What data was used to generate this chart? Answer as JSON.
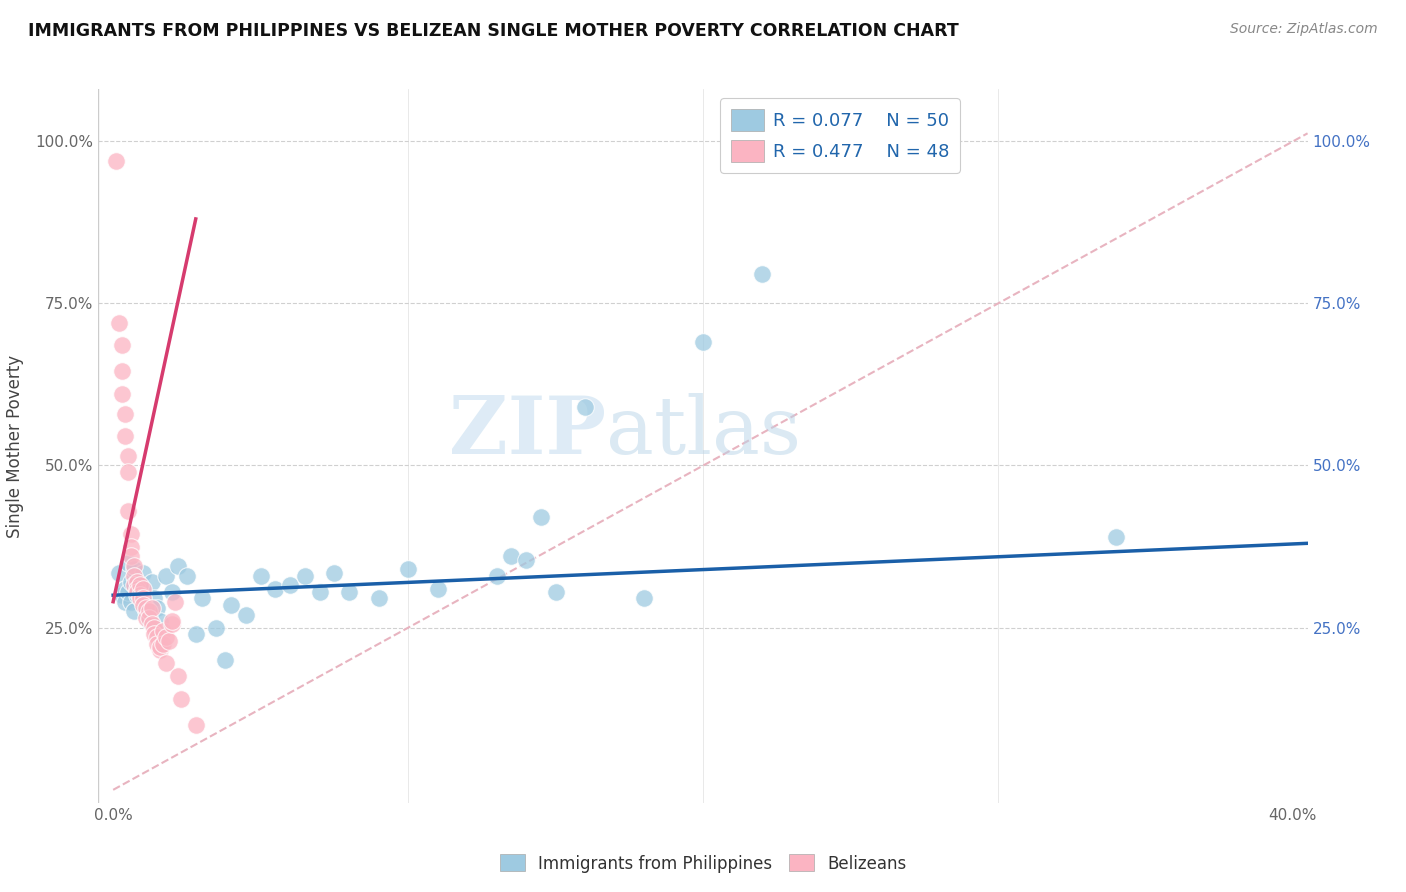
{
  "title": "IMMIGRANTS FROM PHILIPPINES VS BELIZEAN SINGLE MOTHER POVERTY CORRELATION CHART",
  "source": "Source: ZipAtlas.com",
  "ylabel": "Single Mother Poverty",
  "xlabel_legend_blue": "Immigrants from Philippines",
  "xlabel_legend_pink": "Belizeans",
  "legend_blue_r": "R = 0.077",
  "legend_blue_n": "N = 50",
  "legend_pink_r": "R = 0.477",
  "legend_pink_n": "N = 48",
  "xlim": [
    -0.005,
    0.405
  ],
  "ylim": [
    -0.02,
    1.08
  ],
  "x_ticks": [
    0.0,
    0.1,
    0.2,
    0.3,
    0.4
  ],
  "x_tick_labels": [
    "0.0%",
    "",
    "",
    "",
    "40.0%"
  ],
  "y_ticks": [
    0.25,
    0.5,
    0.75,
    1.0
  ],
  "y_tick_labels_left": [
    "25.0%",
    "50.0%",
    "75.0%",
    "100.0%"
  ],
  "y_tick_labels_right": [
    "25.0%",
    "50.0%",
    "75.0%",
    "100.0%"
  ],
  "watermark_zip": "ZIP",
  "watermark_atlas": "atlas",
  "background_color": "#ffffff",
  "blue_color": "#9ecae1",
  "pink_color": "#fbb4c2",
  "blue_line_color": "#1a5fa8",
  "pink_line_color": "#d63b6e",
  "ref_line_color": "#e8b4c0",
  "grid_color": "#d0d0d0",
  "blue_scatter": [
    [
      0.002,
      0.335
    ],
    [
      0.003,
      0.3
    ],
    [
      0.004,
      0.31
    ],
    [
      0.004,
      0.29
    ],
    [
      0.005,
      0.35
    ],
    [
      0.005,
      0.305
    ],
    [
      0.006,
      0.32
    ],
    [
      0.006,
      0.29
    ],
    [
      0.007,
      0.34
    ],
    [
      0.007,
      0.275
    ],
    [
      0.008,
      0.3
    ],
    [
      0.009,
      0.315
    ],
    [
      0.01,
      0.335
    ],
    [
      0.01,
      0.29
    ],
    [
      0.011,
      0.275
    ],
    [
      0.012,
      0.26
    ],
    [
      0.013,
      0.32
    ],
    [
      0.014,
      0.295
    ],
    [
      0.015,
      0.28
    ],
    [
      0.016,
      0.26
    ],
    [
      0.018,
      0.33
    ],
    [
      0.02,
      0.305
    ],
    [
      0.022,
      0.345
    ],
    [
      0.025,
      0.33
    ],
    [
      0.028,
      0.24
    ],
    [
      0.03,
      0.295
    ],
    [
      0.035,
      0.25
    ],
    [
      0.038,
      0.2
    ],
    [
      0.04,
      0.285
    ],
    [
      0.045,
      0.27
    ],
    [
      0.05,
      0.33
    ],
    [
      0.055,
      0.31
    ],
    [
      0.06,
      0.315
    ],
    [
      0.065,
      0.33
    ],
    [
      0.07,
      0.305
    ],
    [
      0.075,
      0.335
    ],
    [
      0.08,
      0.305
    ],
    [
      0.09,
      0.295
    ],
    [
      0.1,
      0.34
    ],
    [
      0.11,
      0.31
    ],
    [
      0.13,
      0.33
    ],
    [
      0.135,
      0.36
    ],
    [
      0.14,
      0.355
    ],
    [
      0.145,
      0.42
    ],
    [
      0.15,
      0.305
    ],
    [
      0.16,
      0.59
    ],
    [
      0.18,
      0.295
    ],
    [
      0.2,
      0.69
    ],
    [
      0.22,
      0.795
    ],
    [
      0.34,
      0.39
    ]
  ],
  "pink_scatter": [
    [
      0.001,
      0.97
    ],
    [
      0.002,
      0.72
    ],
    [
      0.003,
      0.685
    ],
    [
      0.003,
      0.645
    ],
    [
      0.003,
      0.61
    ],
    [
      0.004,
      0.58
    ],
    [
      0.004,
      0.545
    ],
    [
      0.005,
      0.515
    ],
    [
      0.005,
      0.49
    ],
    [
      0.005,
      0.43
    ],
    [
      0.006,
      0.395
    ],
    [
      0.006,
      0.375
    ],
    [
      0.006,
      0.36
    ],
    [
      0.007,
      0.345
    ],
    [
      0.007,
      0.33
    ],
    [
      0.007,
      0.315
    ],
    [
      0.008,
      0.32
    ],
    [
      0.008,
      0.31
    ],
    [
      0.008,
      0.305
    ],
    [
      0.009,
      0.315
    ],
    [
      0.009,
      0.3
    ],
    [
      0.009,
      0.295
    ],
    [
      0.01,
      0.31
    ],
    [
      0.01,
      0.295
    ],
    [
      0.01,
      0.285
    ],
    [
      0.011,
      0.28
    ],
    [
      0.011,
      0.265
    ],
    [
      0.012,
      0.275
    ],
    [
      0.012,
      0.265
    ],
    [
      0.013,
      0.28
    ],
    [
      0.013,
      0.255
    ],
    [
      0.014,
      0.25
    ],
    [
      0.014,
      0.24
    ],
    [
      0.015,
      0.235
    ],
    [
      0.015,
      0.225
    ],
    [
      0.016,
      0.215
    ],
    [
      0.016,
      0.22
    ],
    [
      0.017,
      0.245
    ],
    [
      0.017,
      0.225
    ],
    [
      0.018,
      0.235
    ],
    [
      0.018,
      0.195
    ],
    [
      0.019,
      0.23
    ],
    [
      0.02,
      0.255
    ],
    [
      0.02,
      0.26
    ],
    [
      0.021,
      0.29
    ],
    [
      0.022,
      0.175
    ],
    [
      0.023,
      0.14
    ],
    [
      0.028,
      0.1
    ]
  ],
  "blue_trend_x": [
    0.0,
    0.405
  ],
  "blue_trend_y": [
    0.3,
    0.38
  ],
  "pink_trend_x": [
    0.0,
    0.028
  ],
  "pink_trend_y": [
    0.29,
    0.88
  ],
  "ref_line_x": [
    0.0,
    0.405
  ],
  "ref_line_y": [
    0.0,
    1.012
  ]
}
